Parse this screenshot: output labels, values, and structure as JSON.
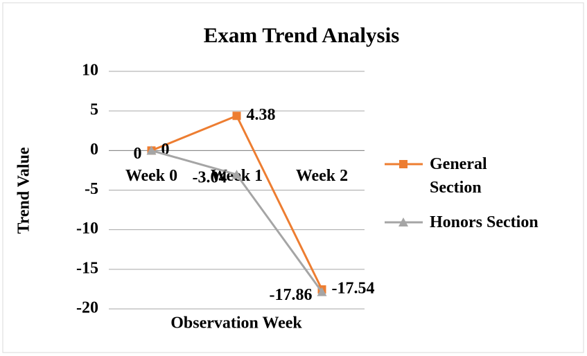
{
  "chart_data": {
    "type": "line",
    "title": "Exam Trend Analysis",
    "x_label": "Observation Week",
    "y_label": "Trend Value",
    "categories": [
      "Week 0",
      "Week 1",
      "Week 2"
    ],
    "series": [
      {
        "name": "General Section",
        "color": "#ed7d31",
        "marker": "square",
        "values": [
          0,
          4.38,
          -17.54
        ]
      },
      {
        "name": "Honors Section",
        "color": "#a5a5a5",
        "marker": "triangle",
        "values": [
          0,
          -3.04,
          -17.86
        ]
      }
    ],
    "ylim": [
      -20,
      10
    ],
    "yticks": [
      -20,
      -15,
      -10,
      -5,
      0,
      5,
      10
    ],
    "grid": true,
    "legend": "right"
  }
}
